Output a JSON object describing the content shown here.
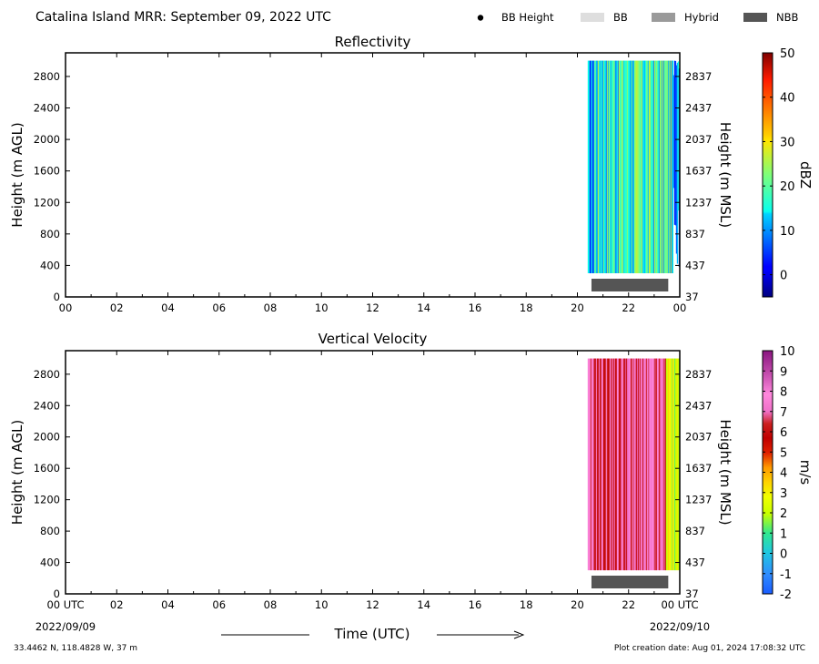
{
  "header": {
    "title": "Catalina Island MRR:  September 09, 2022 UTC",
    "legend": [
      {
        "label": "BB Height",
        "kind": "dot",
        "color": "#000000"
      },
      {
        "label": "BB",
        "kind": "patch",
        "color": "#dedede"
      },
      {
        "label": "Hybrid",
        "kind": "patch",
        "color": "#9a9a9a"
      },
      {
        "label": "NBB",
        "kind": "patch",
        "color": "#555555"
      }
    ]
  },
  "footer": {
    "left": "33.4462 N, 118.4828 W, 37 m",
    "right": "Plot creation date: Aug 01, 2024 17:08:32 UTC",
    "date_start": "2022/09/09",
    "date_end": "2022/09/10",
    "xlabel": "Time (UTC)"
  },
  "chart_data": [
    {
      "type": "heatmap",
      "title": "Reflectivity",
      "ylabel": "Height (m AGL)",
      "ylabel_right": "Height (m MSL)",
      "x_ticks": [
        "00",
        "02",
        "04",
        "06",
        "08",
        "10",
        "12",
        "14",
        "16",
        "18",
        "20",
        "22",
        "00"
      ],
      "x_range_hours": [
        0,
        24
      ],
      "y_range": [
        0,
        3100
      ],
      "y_ticks": [
        0,
        400,
        800,
        1200,
        1600,
        2000,
        2400,
        2800
      ],
      "y_ticks_right": [
        37,
        437,
        837,
        1237,
        1637,
        2037,
        2437,
        2837
      ],
      "data_extent": {
        "time_start_hours": 20.4,
        "time_end_hours": 24.0,
        "height_bottom": 300,
        "height_top": 3000
      },
      "nbb_period_hours": [
        20.55,
        23.55
      ],
      "colorbar": {
        "label": "dBZ",
        "min": -5,
        "max": 50,
        "ticks": [
          0,
          10,
          20,
          30,
          40,
          50
        ],
        "colormap": "jet"
      },
      "dominant_range": [
        8,
        28
      ]
    },
    {
      "type": "heatmap",
      "title": "Vertical Velocity",
      "ylabel": "Height (m AGL)",
      "ylabel_right": "Height (m MSL)",
      "x_ticks": [
        "00 UTC",
        "02",
        "04",
        "06",
        "08",
        "10",
        "12",
        "14",
        "16",
        "18",
        "20",
        "22",
        "00 UTC"
      ],
      "x_range_hours": [
        0,
        24
      ],
      "y_range": [
        0,
        3100
      ],
      "y_ticks": [
        0,
        400,
        800,
        1200,
        1600,
        2000,
        2400,
        2800
      ],
      "y_ticks_right": [
        37,
        437,
        837,
        1237,
        1637,
        2037,
        2437,
        2837
      ],
      "data_extent": {
        "time_start_hours": 20.4,
        "time_end_hours": 24.0,
        "height_bottom": 300,
        "height_top": 3000
      },
      "nbb_period_hours": [
        20.55,
        23.55
      ],
      "colorbar": {
        "label": "m/s",
        "min": -2,
        "max": 10,
        "ticks": [
          -2,
          -1,
          0,
          1,
          2,
          3,
          4,
          5,
          6,
          7,
          8,
          9,
          10
        ],
        "colormap": "velocity"
      },
      "dominant_range": [
        5.5,
        8.0
      ]
    }
  ]
}
